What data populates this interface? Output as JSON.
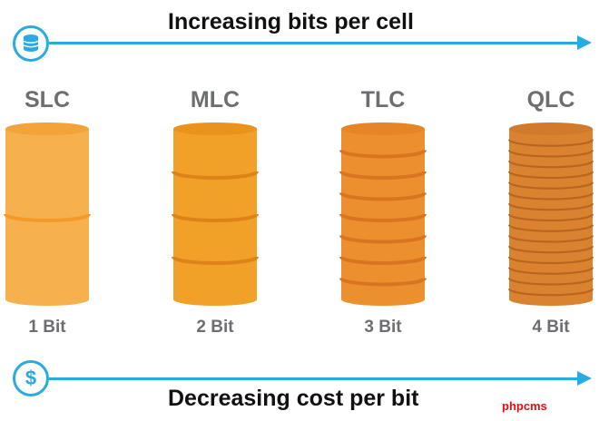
{
  "top": {
    "title": "Increasing bits per cell",
    "icon": "database-icon"
  },
  "bottom": {
    "title": "Decreasing cost per bit",
    "icon": "dollar-icon",
    "icon_glyph": "$"
  },
  "accent_color": "#29abe2",
  "cells": [
    {
      "id": "slc",
      "type": "SLC",
      "bits_label": "1 Bit",
      "layers": 2,
      "color": "#f6b04d",
      "rim": "#f2a33a",
      "sep": "#f39a2a"
    },
    {
      "id": "mlc",
      "type": "MLC",
      "bits_label": "2 Bit",
      "layers": 4,
      "color": "#f1a028",
      "rim": "#e9931d",
      "sep": "#dd8318"
    },
    {
      "id": "tlc",
      "type": "TLC",
      "bits_label": "3 Bit",
      "layers": 8,
      "color": "#ec8f2e",
      "rim": "#e58528",
      "sep": "#d87520"
    },
    {
      "id": "qlc",
      "type": "QLC",
      "bits_label": "4 Bit",
      "layers": 16,
      "color": "#d98230",
      "rim": "#d07a2c",
      "sep": "#b8651f"
    }
  ],
  "watermark": "phpcms"
}
